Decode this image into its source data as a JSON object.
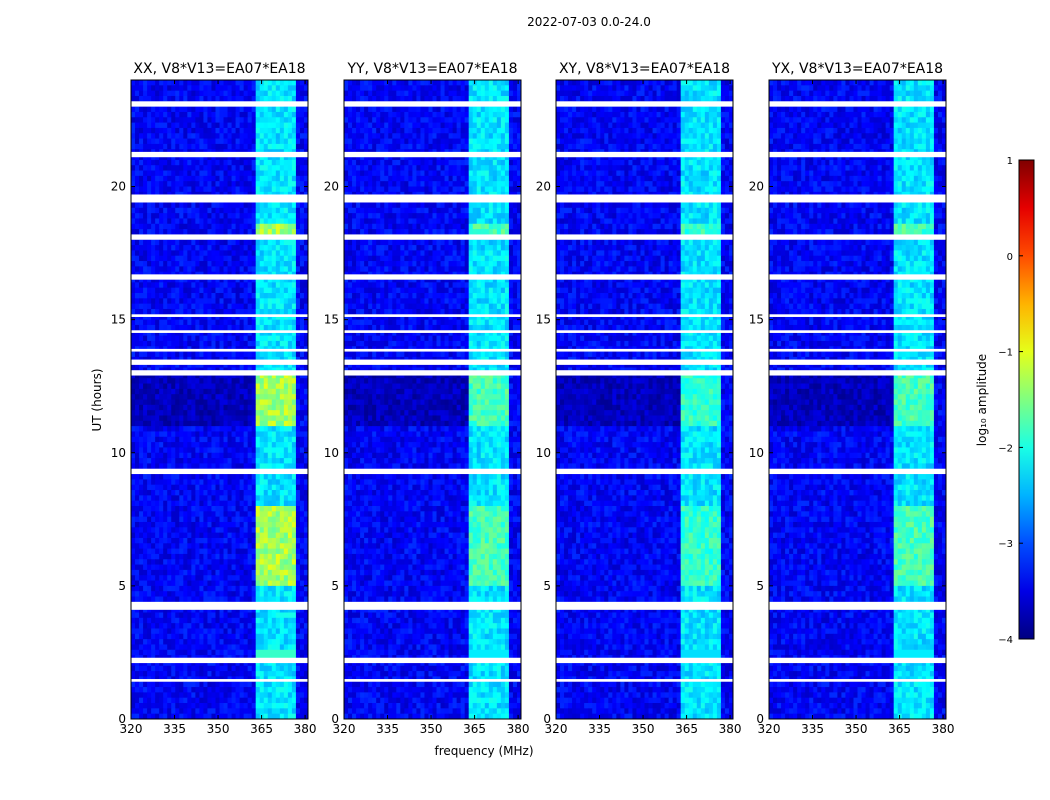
{
  "suptitle": "2022-07-03 0.0-24.0",
  "chart_data": {
    "type": "heatmap",
    "xlabel": "frequency (MHz)",
    "ylabel": "UT (hours)",
    "xlim": [
      320,
      381
    ],
    "ylim": [
      0,
      24
    ],
    "xticks": [
      320,
      335,
      350,
      365,
      380
    ],
    "yticks": [
      0,
      5,
      10,
      15,
      20
    ],
    "panels": [
      {
        "title": "XX, V8*V13=EA07*EA18",
        "rfi_peak": -1.2
      },
      {
        "title": "YY, V8*V13=EA07*EA18",
        "rfi_peak": -1.7
      },
      {
        "title": "XY, V8*V13=EA07*EA18",
        "rfi_peak": -1.8
      },
      {
        "title": "YX, V8*V13=EA07*EA18",
        "rfi_peak": -1.7
      }
    ],
    "rfi_band_mhz": [
      363,
      377
    ],
    "background_log_amplitude": -3.4,
    "flagged_gaps_hours": [
      [
        23.0,
        23.2
      ],
      [
        21.1,
        21.3
      ],
      [
        19.4,
        19.7
      ],
      [
        18.0,
        18.2
      ],
      [
        16.5,
        16.7
      ],
      [
        15.1,
        15.2
      ],
      [
        14.5,
        14.6
      ],
      [
        13.8,
        13.9
      ],
      [
        13.3,
        13.5
      ],
      [
        12.9,
        13.1
      ],
      [
        9.2,
        9.4
      ],
      [
        4.1,
        4.4
      ],
      [
        2.1,
        2.3
      ],
      [
        1.4,
        1.5
      ]
    ],
    "colorbar": {
      "label": "log₁₀ amplitude",
      "range": [
        -4,
        1
      ],
      "ticks": [
        "1",
        "0",
        "−1",
        "−2",
        "−3",
        "−4"
      ],
      "colormap": "jet"
    }
  }
}
